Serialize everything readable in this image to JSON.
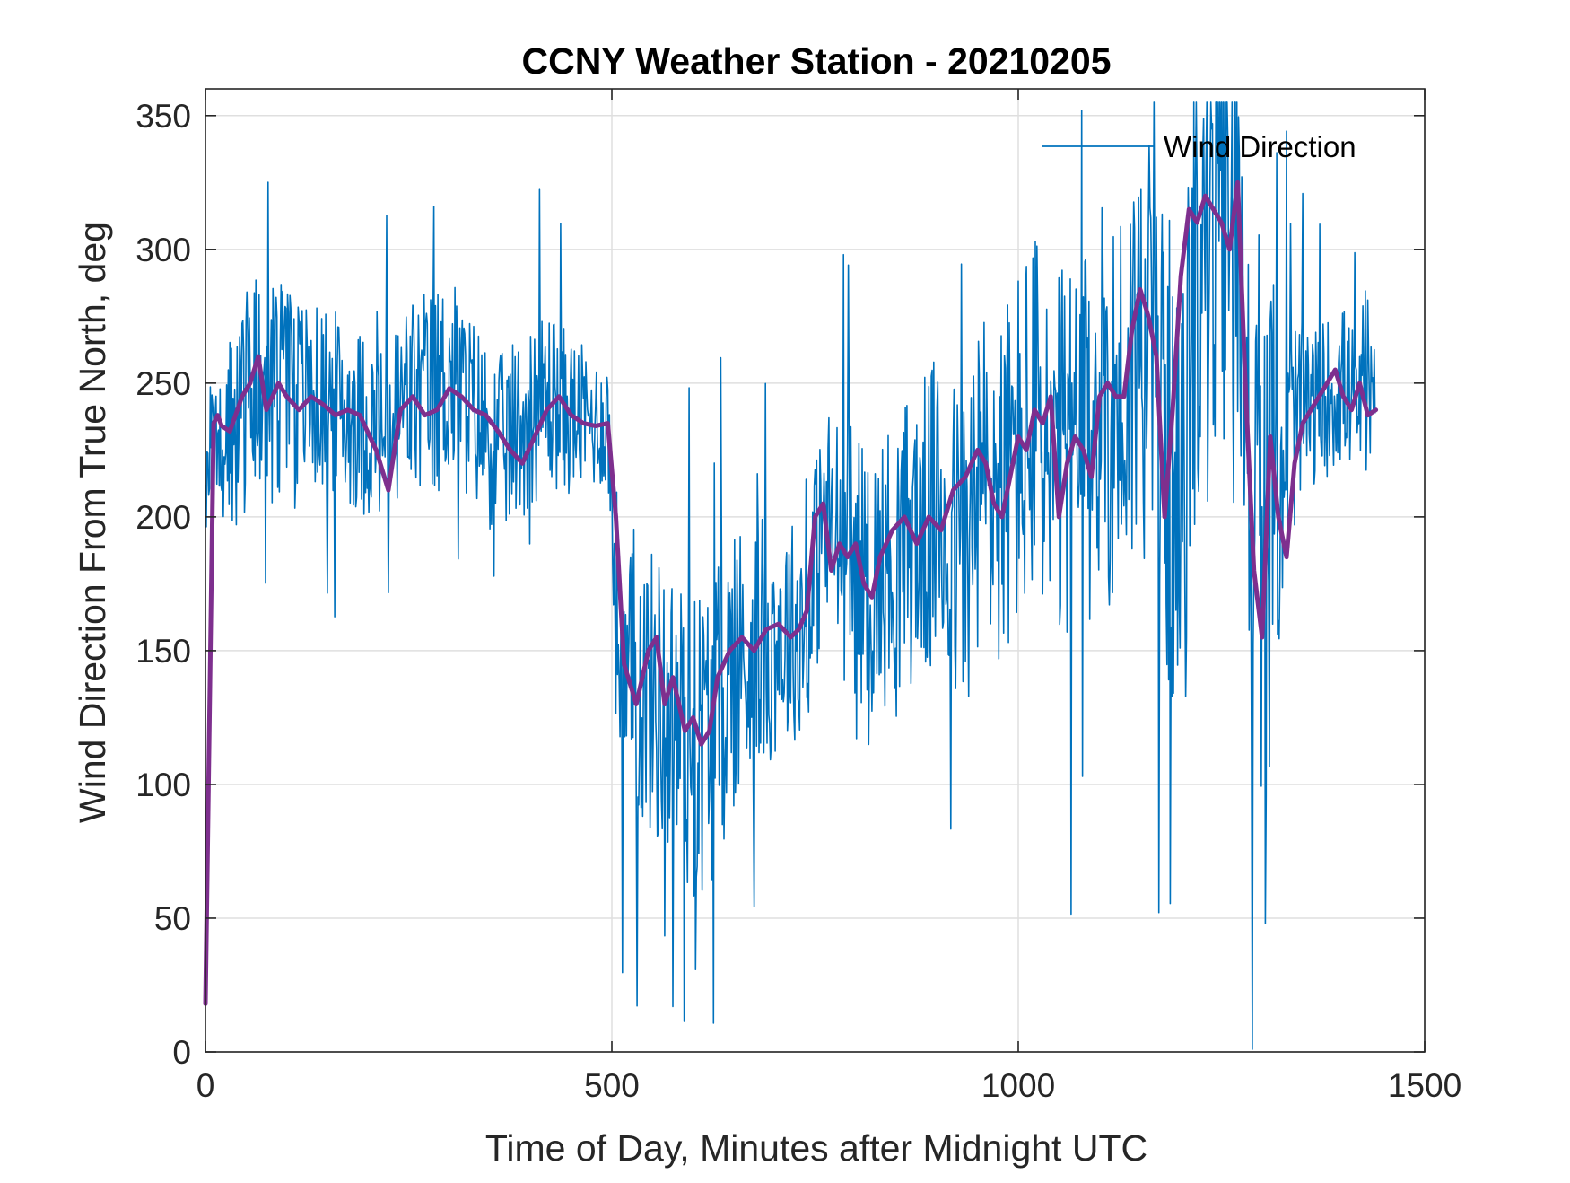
{
  "chart_data": {
    "type": "line",
    "title": "CCNY Weather Station - 20210205",
    "xlabel": "Time of Day, Minutes after Midnight UTC",
    "ylabel": "Wind Direction From True North, deg",
    "xlim": [
      0,
      1500
    ],
    "ylim": [
      0,
      360
    ],
    "xticks": [
      0,
      500,
      1000,
      1500
    ],
    "xtick_labels": [
      "0",
      "500",
      "1000",
      "1500"
    ],
    "yticks": [
      0,
      50,
      100,
      150,
      200,
      250,
      300,
      350
    ],
    "ytick_labels": [
      "0",
      "50",
      "100",
      "150",
      "200",
      "250",
      "300",
      "350"
    ],
    "grid": true,
    "legend": {
      "position": "top-right",
      "entries": [
        "Wind Direction"
      ]
    },
    "series": [
      {
        "name": "Wind Direction",
        "color": "#0072BD",
        "line_style": "thin-noisy",
        "x": [
          0,
          10,
          20,
          40,
          60,
          80,
          100,
          130,
          160,
          190,
          220,
          250,
          280,
          300,
          330,
          360,
          390,
          420,
          450,
          480,
          495,
          505,
          515,
          530,
          560,
          600,
          620,
          650,
          700,
          740,
          760,
          790,
          820,
          860,
          900,
          930,
          960,
          980,
          1000,
          1030,
          1040,
          1060,
          1080,
          1100,
          1130,
          1150,
          1170,
          1190,
          1200,
          1220,
          1240,
          1260,
          1275,
          1285,
          1300,
          1320,
          1340,
          1360,
          1380,
          1400,
          1420,
          1440
        ],
        "values": [
          215,
          235,
          230,
          235,
          255,
          245,
          248,
          245,
          242,
          236,
          230,
          245,
          245,
          252,
          240,
          225,
          235,
          245,
          238,
          235,
          236,
          170,
          125,
          140,
          130,
          115,
          120,
          145,
          155,
          160,
          200,
          185,
          175,
          190,
          200,
          185,
          215,
          210,
          225,
          240,
          205,
          225,
          220,
          245,
          240,
          270,
          250,
          215,
          185,
          300,
          310,
          315,
          305,
          200,
          175,
          220,
          235,
          240,
          245,
          250,
          240,
          238
        ],
        "noise_amplitude": [
          25,
          30,
          35,
          40,
          45,
          40,
          40,
          35,
          35,
          35,
          35,
          40,
          40,
          40,
          35,
          35,
          35,
          35,
          30,
          25,
          25,
          45,
          55,
          55,
          55,
          60,
          60,
          55,
          45,
          40,
          45,
          50,
          50,
          55,
          60,
          65,
          70,
          70,
          70,
          75,
          75,
          75,
          75,
          75,
          80,
          80,
          85,
          90,
          90,
          90,
          90,
          90,
          90,
          100,
          100,
          75,
          40,
          30,
          30,
          30,
          25,
          20
        ],
        "samples": 1440
      },
      {
        "name": "",
        "color": "#7E2F8E",
        "line_style": "thick-smoothed",
        "x": [
          0,
          10,
          15,
          20,
          30,
          45,
          55,
          65,
          75,
          90,
          100,
          115,
          130,
          145,
          160,
          175,
          190,
          210,
          225,
          240,
          255,
          270,
          285,
          300,
          315,
          330,
          345,
          360,
          375,
          390,
          405,
          420,
          435,
          450,
          465,
          480,
          495,
          505,
          515,
          520,
          530,
          545,
          555,
          565,
          575,
          590,
          600,
          610,
          620,
          630,
          645,
          660,
          675,
          690,
          705,
          720,
          730,
          740,
          750,
          760,
          770,
          780,
          790,
          800,
          810,
          820,
          830,
          845,
          860,
          875,
          890,
          905,
          920,
          935,
          950,
          960,
          970,
          980,
          990,
          1000,
          1010,
          1020,
          1030,
          1040,
          1050,
          1060,
          1070,
          1080,
          1090,
          1100,
          1110,
          1120,
          1130,
          1140,
          1150,
          1160,
          1170,
          1180,
          1190,
          1200,
          1210,
          1220,
          1230,
          1240,
          1250,
          1260,
          1270,
          1280,
          1290,
          1300,
          1310,
          1320,
          1330,
          1340,
          1350,
          1360,
          1370,
          1380,
          1390,
          1400,
          1410,
          1420,
          1430,
          1440
        ],
        "values": [
          18,
          235,
          238,
          234,
          232,
          245,
          250,
          260,
          240,
          250,
          245,
          240,
          245,
          242,
          238,
          240,
          238,
          225,
          210,
          240,
          245,
          238,
          240,
          248,
          245,
          240,
          238,
          232,
          225,
          220,
          230,
          240,
          245,
          238,
          235,
          234,
          235,
          200,
          145,
          140,
          130,
          150,
          155,
          130,
          140,
          120,
          125,
          115,
          120,
          140,
          150,
          155,
          150,
          158,
          160,
          155,
          158,
          165,
          200,
          205,
          180,
          190,
          185,
          190,
          175,
          170,
          185,
          195,
          200,
          190,
          200,
          195,
          210,
          215,
          225,
          220,
          205,
          200,
          215,
          230,
          225,
          240,
          235,
          245,
          200,
          220,
          230,
          225,
          215,
          245,
          250,
          245,
          245,
          270,
          285,
          275,
          260,
          200,
          240,
          290,
          315,
          310,
          320,
          315,
          310,
          300,
          325,
          245,
          180,
          155,
          230,
          200,
          185,
          220,
          235,
          240,
          245,
          250,
          255,
          245,
          240,
          250,
          238,
          240
        ]
      }
    ]
  }
}
